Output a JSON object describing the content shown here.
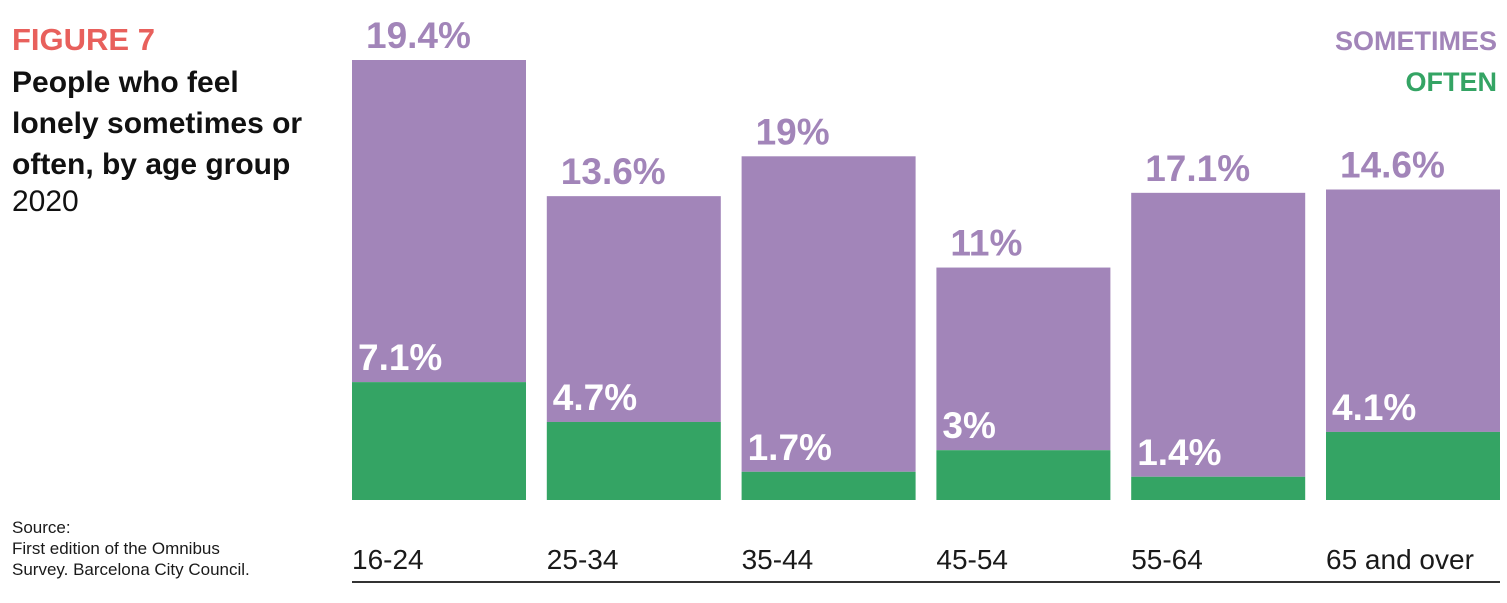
{
  "header": {
    "figure_label": "FIGURE 7",
    "title": "People who feel lonely sometimes or often, by age group",
    "year": "2020"
  },
  "source": {
    "heading": "Source:",
    "line1": "First edition of the Omnibus",
    "line2": "Survey. Barcelona City Council."
  },
  "colors": {
    "sometimes": "#a285b9",
    "often": "#34a464",
    "figure_label": "#e8605c",
    "axis": "#333333"
  },
  "chart_data": {
    "type": "bar",
    "stacked": true,
    "categories": [
      "16-24",
      "25-34",
      "35-44",
      "45-54",
      "55-64",
      "65 and over"
    ],
    "series": [
      {
        "name": "OFTEN",
        "values": [
          7.1,
          4.7,
          1.7,
          3,
          1.4,
          4.1
        ],
        "labels": [
          "7.1%",
          "4.7%",
          "1.7%",
          "3%",
          "1.4%",
          "4.1%"
        ]
      },
      {
        "name": "SOMETIMES",
        "values": [
          19.4,
          13.6,
          19,
          11,
          17.1,
          14.6
        ],
        "labels": [
          "19.4%",
          "13.6%",
          "19%",
          "11%",
          "17.1%",
          "14.6%"
        ]
      }
    ],
    "legend": {
      "position": "top-right",
      "entries": [
        "SOMETIMES",
        "OFTEN"
      ]
    },
    "grid": false,
    "ylim": [
      0,
      26.5
    ]
  }
}
